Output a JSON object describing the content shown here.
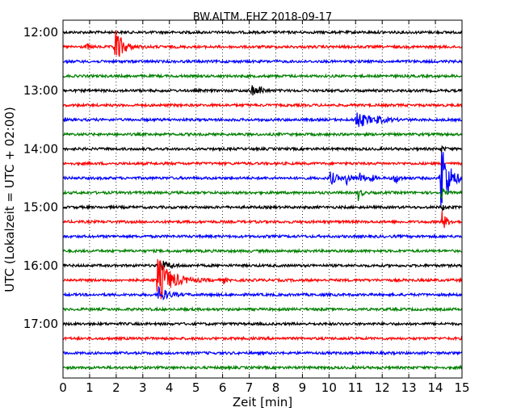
{
  "chart_data": {
    "type": "line",
    "title": "BW.ALTM..EHZ 2018-09-17",
    "xlabel": "Zeit  [min]",
    "ylabel": "UTC (Lokalzeit = UTC + 02:00)",
    "xlim": [
      0,
      15
    ],
    "x_ticks": [
      "0",
      "1",
      "2",
      "3",
      "4",
      "5",
      "6",
      "7",
      "8",
      "9",
      "10",
      "11",
      "12",
      "13",
      "14",
      "15"
    ],
    "y_ticks": [
      "12:00",
      "13:00",
      "14:00",
      "15:00",
      "16:00",
      "17:00"
    ],
    "x_grid": "dotted",
    "trace_colors": [
      "#000000",
      "#ff0000",
      "#0000ff",
      "#008000"
    ],
    "traces": [
      {
        "start": "12:00",
        "events": []
      },
      {
        "start": "12:15",
        "events": [
          {
            "t": 1.95,
            "amp": 26,
            "dur": 0.25
          },
          {
            "t": 0.9,
            "amp": 4,
            "dur": 0.1
          }
        ]
      },
      {
        "start": "12:30",
        "events": []
      },
      {
        "start": "12:45",
        "events": []
      },
      {
        "start": "13:00",
        "events": [
          {
            "t": 7.1,
            "amp": 8,
            "dur": 0.15
          },
          {
            "t": 7.4,
            "amp": 6,
            "dur": 0.1
          }
        ]
      },
      {
        "start": "13:15",
        "events": []
      },
      {
        "start": "13:30",
        "events": [
          {
            "t": 11.0,
            "amp": 12,
            "dur": 0.4
          },
          {
            "t": 11.8,
            "amp": 3,
            "dur": 0.3
          }
        ]
      },
      {
        "start": "13:45",
        "events": []
      },
      {
        "start": "14:00",
        "events": [
          {
            "t": 14.22,
            "amp": 4,
            "dur": 0.1
          }
        ]
      },
      {
        "start": "14:15",
        "events": []
      },
      {
        "start": "14:30",
        "events": [
          {
            "t": 10.05,
            "amp": 9,
            "dur": 0.2
          },
          {
            "t": 10.65,
            "amp": 8,
            "dur": 0.15
          },
          {
            "t": 11.15,
            "amp": 7,
            "dur": 0.15
          },
          {
            "t": 11.55,
            "amp": 6,
            "dur": 0.1
          },
          {
            "t": 12.45,
            "amp": 8,
            "dur": 0.15
          },
          {
            "t": 14.2,
            "amp": 58,
            "dur": 0.25
          }
        ]
      },
      {
        "start": "14:45",
        "events": [
          {
            "t": 11.1,
            "amp": 9,
            "dur": 0.1
          },
          {
            "t": 14.22,
            "amp": 8,
            "dur": 0.1
          }
        ]
      },
      {
        "start": "15:00",
        "events": [
          {
            "t": 14.25,
            "amp": 4,
            "dur": 0.1
          }
        ]
      },
      {
        "start": "15:15",
        "events": [
          {
            "t": 14.25,
            "amp": 13,
            "dur": 0.15
          }
        ]
      },
      {
        "start": "15:30",
        "events": []
      },
      {
        "start": "15:45",
        "events": []
      },
      {
        "start": "16:00",
        "events": [
          {
            "t": 3.55,
            "amp": 9,
            "dur": 0.3
          }
        ]
      },
      {
        "start": "16:15",
        "events": [
          {
            "t": 3.55,
            "amp": 30,
            "dur": 0.45
          },
          {
            "t": 6.05,
            "amp": 5,
            "dur": 0.05
          }
        ]
      },
      {
        "start": "16:30",
        "events": [
          {
            "t": 3.6,
            "amp": 10,
            "dur": 0.3
          }
        ]
      },
      {
        "start": "16:45",
        "events": []
      },
      {
        "start": "17:00",
        "events": []
      },
      {
        "start": "17:15",
        "events": []
      },
      {
        "start": "17:30",
        "events": []
      },
      {
        "start": "17:45",
        "events": []
      }
    ]
  }
}
